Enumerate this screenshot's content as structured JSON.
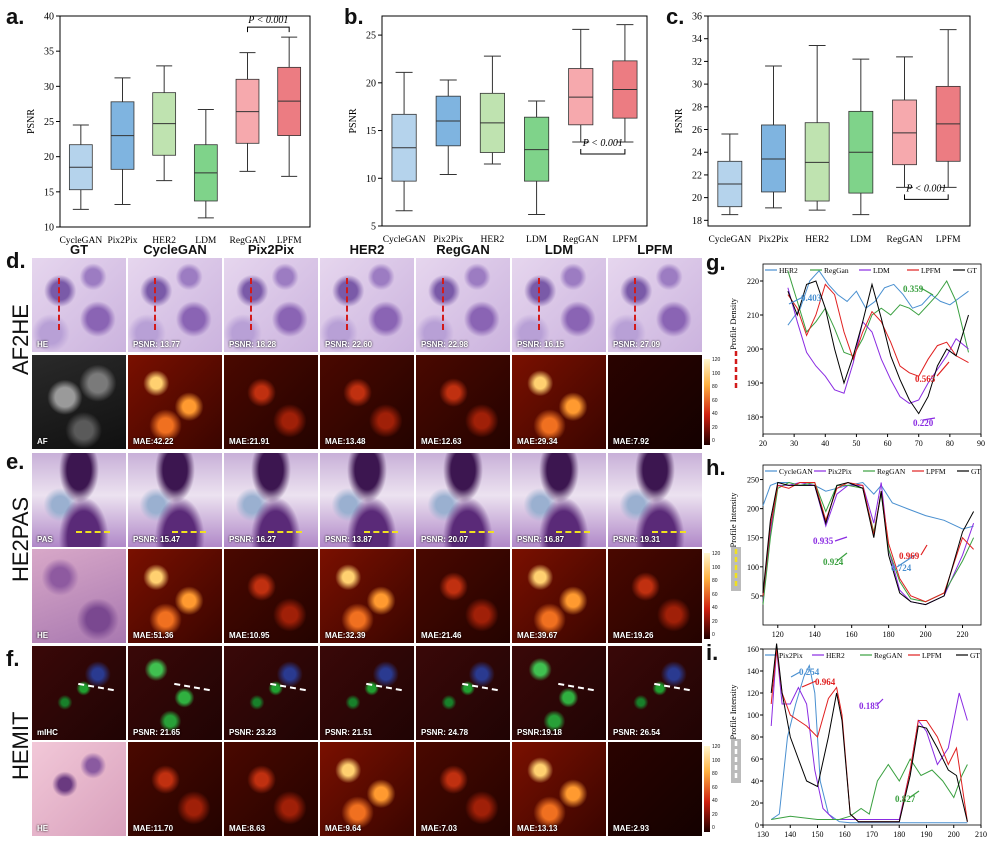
{
  "panel_letters": {
    "a": "a.",
    "b": "b.",
    "c": "c.",
    "d": "d.",
    "e": "e.",
    "f": "f.",
    "g": "g.",
    "h": "h.",
    "i": "i."
  },
  "columns": [
    "GT",
    "CycleGAN",
    "Pix2Pix",
    "HER2",
    "RegGAN",
    "LDM",
    "LPFM"
  ],
  "row_labels": {
    "d": "AF2HE",
    "e": "HE2PAS",
    "f": "HEMIT"
  },
  "rows": {
    "d_top": {
      "gt_label": "HE",
      "labels": [
        "PSNR: 13.77",
        "PSNR: 18.28",
        "PSNR: 22.60",
        "PSNR: 22.98",
        "PSNR: 16.15",
        "PSNR: 27.09"
      ]
    },
    "d_bot": {
      "gt_label": "AF",
      "labels": [
        "MAE:42.22",
        "MAE:21.91",
        "MAE:13.48",
        "MAE:12.63",
        "MAE:29.34",
        "MAE:7.92"
      ]
    },
    "e_top": {
      "gt_label": "PAS",
      "labels": [
        "PSNR: 15.47",
        "PSNR: 16.27",
        "PSNR: 13.87",
        "PSNR: 20.07",
        "PSNR: 16.87",
        "PSNR: 19.31"
      ]
    },
    "e_bot": {
      "gt_label": "HE",
      "labels": [
        "MAE:51.36",
        "MAE:10.95",
        "MAE:32.39",
        "MAE:21.46",
        "MAE:39.67",
        "MAE:19.26"
      ]
    },
    "f_top": {
      "gt_label": "mIHC",
      "labels": [
        "PSNR: 21.65",
        "PSNR: 23.23",
        "PSNR: 21.51",
        "PSNR: 24.78",
        "PSNR:19.18",
        "PSNR: 26.54"
      ]
    },
    "f_bot": {
      "gt_label": "HE",
      "labels": [
        "MAE:11.70",
        "MAE:8.63",
        "MAE:9.64",
        "MAE:7.03",
        "MAE:13.13",
        "MAE:2.93"
      ]
    }
  },
  "colorbar_ticks": [
    "120",
    "100",
    "80",
    "60",
    "40",
    "20",
    "0"
  ],
  "chart_data": [
    {
      "type": "box",
      "id": "a",
      "ylabel": "PSNR",
      "ylim": [
        10,
        40
      ],
      "yticks": [
        10,
        15,
        20,
        25,
        30,
        35,
        40
      ],
      "categories": [
        "CycleGAN",
        "Pix2Pix",
        "HER2",
        "LDM",
        "RegGAN",
        "LPFM"
      ],
      "colors": [
        "#b5d3ec",
        "#7fb4e0",
        "#bfe3b0",
        "#7fd38a",
        "#f6a9ad",
        "#ec7c82"
      ],
      "boxes": [
        {
          "min": 12.5,
          "q1": 15.3,
          "median": 18.5,
          "q3": 21.7,
          "max": 24.5
        },
        {
          "min": 13.2,
          "q1": 18.2,
          "median": 23.0,
          "q3": 27.8,
          "max": 31.2
        },
        {
          "min": 16.6,
          "q1": 20.2,
          "median": 24.7,
          "q3": 29.1,
          "max": 32.9
        },
        {
          "min": 11.3,
          "q1": 13.7,
          "median": 17.7,
          "q3": 21.7,
          "max": 26.7
        },
        {
          "min": 17.9,
          "q1": 21.9,
          "median": 26.4,
          "q3": 31.0,
          "max": 34.8
        },
        {
          "min": 17.2,
          "q1": 23.0,
          "median": 27.9,
          "q3": 32.7,
          "max": 37.0
        }
      ],
      "annotation": "P < 0.001",
      "bracket": [
        4,
        5
      ]
    },
    {
      "type": "box",
      "id": "b",
      "ylabel": "PSNR",
      "ylim": [
        5,
        27
      ],
      "yticks": [
        5,
        10,
        15,
        20,
        25
      ],
      "categories": [
        "CycleGAN",
        "Pix2Pix",
        "HER2",
        "LDM",
        "RegGAN",
        "LPFM"
      ],
      "colors": [
        "#b5d3ec",
        "#7fb4e0",
        "#bfe3b0",
        "#7fd38a",
        "#f6a9ad",
        "#ec7c82"
      ],
      "boxes": [
        {
          "min": 6.6,
          "q1": 9.7,
          "median": 13.2,
          "q3": 16.7,
          "max": 21.1
        },
        {
          "min": 10.4,
          "q1": 13.4,
          "median": 16.0,
          "q3": 18.6,
          "max": 20.3
        },
        {
          "min": 11.5,
          "q1": 12.7,
          "median": 15.8,
          "q3": 18.9,
          "max": 22.8
        },
        {
          "min": 6.2,
          "q1": 9.7,
          "median": 13.0,
          "q3": 16.4,
          "max": 18.1
        },
        {
          "min": 13.8,
          "q1": 15.6,
          "median": 18.5,
          "q3": 21.5,
          "max": 25.6
        },
        {
          "min": 13.8,
          "q1": 16.3,
          "median": 19.3,
          "q3": 22.3,
          "max": 26.1
        }
      ],
      "annotation": "P < 0.001",
      "bracket": [
        4,
        5
      ]
    },
    {
      "type": "box",
      "id": "c",
      "ylabel": "PSNR",
      "ylim": [
        17.5,
        36
      ],
      "yticks": [
        18,
        20,
        22,
        24,
        26,
        28,
        30,
        32,
        34,
        36
      ],
      "categories": [
        "CycleGAN",
        "Pix2Pix",
        "HER2",
        "LDM",
        "RegGAN",
        "LPFM"
      ],
      "colors": [
        "#b5d3ec",
        "#7fb4e0",
        "#bfe3b0",
        "#7fd38a",
        "#f6a9ad",
        "#ec7c82"
      ],
      "boxes": [
        {
          "min": 18.5,
          "q1": 19.2,
          "median": 21.2,
          "q3": 23.2,
          "max": 25.6
        },
        {
          "min": 19.1,
          "q1": 20.5,
          "median": 23.4,
          "q3": 26.4,
          "max": 31.6
        },
        {
          "min": 18.9,
          "q1": 19.7,
          "median": 23.1,
          "q3": 26.6,
          "max": 33.4
        },
        {
          "min": 18.5,
          "q1": 20.4,
          "median": 24.0,
          "q3": 27.6,
          "max": 32.2
        },
        {
          "min": 20.9,
          "q1": 22.9,
          "median": 25.7,
          "q3": 28.6,
          "max": 32.4
        },
        {
          "min": 20.9,
          "q1": 23.2,
          "median": 26.5,
          "q3": 29.8,
          "max": 34.8
        }
      ],
      "annotation": "P < 0.001",
      "bracket": [
        4,
        5
      ]
    },
    {
      "type": "line",
      "id": "g",
      "ylabel": "Profile Density",
      "xlim": [
        20,
        90
      ],
      "ylim": [
        175,
        225
      ],
      "xticks": [
        20,
        30,
        40,
        50,
        60,
        70,
        80,
        90
      ],
      "yticks": [
        180,
        190,
        200,
        210,
        220
      ],
      "series": [
        {
          "name": "HER2",
          "color": "#4a90d0",
          "x": [
            28,
            32,
            35,
            38,
            41,
            44,
            47,
            50,
            53,
            56,
            59,
            62,
            65,
            68,
            71,
            74,
            77,
            80,
            83,
            86
          ],
          "y": [
            207,
            212,
            220,
            223,
            219,
            216,
            214,
            217,
            212,
            214,
            218,
            219,
            216,
            212,
            213,
            216,
            214,
            213,
            215,
            217
          ]
        },
        {
          "name": "RegGan",
          "color": "#3aa040",
          "x": [
            28,
            31,
            34,
            37,
            40,
            43,
            46,
            49,
            52,
            55,
            58,
            61,
            64,
            67,
            70,
            73,
            76,
            79,
            82,
            86
          ],
          "y": [
            223,
            214,
            205,
            208,
            212,
            206,
            199,
            198,
            203,
            210,
            212,
            210,
            213,
            212,
            210,
            213,
            216,
            220,
            214,
            199
          ]
        },
        {
          "name": "LDM",
          "color": "#8a2be2",
          "x": [
            28,
            31,
            34,
            37,
            40,
            43,
            46,
            49,
            52,
            55,
            58,
            61,
            64,
            67,
            70,
            73,
            76,
            79,
            82,
            86
          ],
          "y": [
            218,
            208,
            199,
            195,
            192,
            188,
            187,
            196,
            208,
            205,
            197,
            191,
            186,
            184,
            185,
            190,
            194,
            198,
            203,
            200
          ]
        },
        {
          "name": "LPFM",
          "color": "#e02020",
          "x": [
            28,
            31,
            34,
            37,
            40,
            43,
            46,
            49,
            52,
            55,
            58,
            61,
            64,
            67,
            70,
            73,
            76,
            79,
            82,
            86
          ],
          "y": [
            216,
            212,
            204,
            210,
            219,
            216,
            205,
            197,
            205,
            211,
            208,
            202,
            195,
            193,
            192,
            197,
            201,
            202,
            198,
            196
          ]
        },
        {
          "name": "GT",
          "color": "#000000",
          "x": [
            28,
            31,
            34,
            37,
            40,
            43,
            46,
            49,
            52,
            55,
            58,
            61,
            64,
            67,
            70,
            73,
            76,
            79,
            82,
            86
          ],
          "y": [
            217,
            210,
            219,
            220,
            212,
            200,
            190,
            198,
            208,
            219,
            209,
            198,
            191,
            185,
            181,
            186,
            195,
            200,
            198,
            210
          ]
        }
      ],
      "annotations": [
        {
          "text": "0.403",
          "color": "#4a90d0"
        },
        {
          "text": "0.359",
          "color": "#3aa040"
        },
        {
          "text": "0.565",
          "color": "#e02020"
        },
        {
          "text": "0.220",
          "color": "#8a2be2"
        }
      ]
    },
    {
      "type": "line",
      "id": "h",
      "ylabel": "Profile Intensity",
      "xlim": [
        112,
        230
      ],
      "ylim": [
        0,
        275
      ],
      "xticks": [
        120,
        140,
        160,
        180,
        200,
        220
      ],
      "yticks": [
        50,
        100,
        150,
        200,
        250
      ],
      "series": [
        {
          "name": "CycleGAN",
          "color": "#4a90d0",
          "x": [
            112,
            116,
            120,
            126,
            132,
            140,
            146,
            152,
            158,
            166,
            172,
            176,
            182,
            190,
            200,
            210,
            220,
            226
          ],
          "y": [
            205,
            240,
            245,
            245,
            240,
            240,
            230,
            235,
            240,
            245,
            225,
            240,
            210,
            200,
            188,
            180,
            165,
            170
          ]
        },
        {
          "name": "Pix2Pix",
          "color": "#8a2be2",
          "x": [
            112,
            116,
            120,
            126,
            132,
            140,
            146,
            152,
            158,
            166,
            172,
            176,
            180,
            186,
            192,
            200,
            210,
            220,
            226
          ],
          "y": [
            40,
            160,
            240,
            240,
            245,
            240,
            170,
            225,
            240,
            240,
            175,
            245,
            130,
            60,
            40,
            35,
            50,
            120,
            175
          ]
        },
        {
          "name": "RegGAN",
          "color": "#3aa040",
          "x": [
            112,
            116,
            120,
            126,
            132,
            140,
            146,
            152,
            158,
            166,
            172,
            176,
            180,
            186,
            192,
            200,
            210,
            220,
            226
          ],
          "y": [
            35,
            150,
            235,
            245,
            240,
            245,
            195,
            240,
            240,
            235,
            160,
            225,
            130,
            75,
            45,
            40,
            55,
            110,
            150
          ]
        },
        {
          "name": "LPFM",
          "color": "#e02020",
          "x": [
            112,
            116,
            120,
            126,
            132,
            140,
            146,
            152,
            158,
            166,
            172,
            176,
            180,
            186,
            192,
            200,
            210,
            220,
            226
          ],
          "y": [
            50,
            170,
            240,
            235,
            245,
            245,
            180,
            235,
            245,
            240,
            155,
            230,
            140,
            80,
            50,
            40,
            55,
            150,
            130
          ]
        },
        {
          "name": "GT",
          "color": "#000000",
          "x": [
            112,
            116,
            120,
            126,
            132,
            140,
            146,
            152,
            158,
            166,
            172,
            176,
            180,
            186,
            192,
            200,
            210,
            220,
            226
          ],
          "y": [
            55,
            180,
            245,
            240,
            240,
            240,
            175,
            240,
            245,
            235,
            150,
            230,
            120,
            55,
            40,
            35,
            50,
            160,
            195
          ]
        }
      ],
      "annotations": [
        {
          "text": "0.724",
          "color": "#4a90d0"
        },
        {
          "text": "0.935",
          "color": "#8a2be2"
        },
        {
          "text": "0.924",
          "color": "#3aa040"
        },
        {
          "text": "0.969",
          "color": "#e02020"
        }
      ]
    },
    {
      "type": "line",
      "id": "i",
      "ylabel": "Profile Intensity",
      "xlim": [
        130,
        210
      ],
      "ylim": [
        0,
        160
      ],
      "xticks": [
        130,
        140,
        150,
        160,
        170,
        180,
        190,
        200,
        210
      ],
      "yticks": [
        0,
        20,
        40,
        60,
        80,
        100,
        120,
        140,
        160
      ],
      "series": [
        {
          "name": "Pix2Pix",
          "color": "#4a90d0",
          "x": [
            133,
            136,
            139,
            142,
            145,
            147,
            149,
            151,
            154,
            158,
            162,
            170,
            180,
            190,
            200,
            205
          ],
          "y": [
            5,
            10,
            80,
            110,
            135,
            145,
            120,
            40,
            10,
            3,
            2,
            2,
            2,
            2,
            2,
            2
          ]
        },
        {
          "name": "HER2",
          "color": "#8a2be2",
          "x": [
            133,
            135,
            137,
            140,
            143,
            146,
            149,
            152,
            156,
            160,
            165,
            170,
            175,
            180,
            184,
            187,
            190,
            194,
            198,
            202,
            205
          ],
          "y": [
            90,
            160,
            110,
            110,
            125,
            110,
            50,
            15,
            5,
            5,
            5,
            5,
            5,
            5,
            50,
            95,
            85,
            55,
            70,
            120,
            95
          ]
        },
        {
          "name": "RegGAN",
          "color": "#3aa040",
          "x": [
            133,
            140,
            150,
            158,
            162,
            166,
            169,
            172,
            176,
            180,
            184,
            188,
            192,
            196,
            200,
            203,
            205
          ],
          "y": [
            5,
            8,
            5,
            5,
            8,
            15,
            10,
            40,
            55,
            40,
            60,
            45,
            50,
            40,
            25,
            45,
            55
          ]
        },
        {
          "name": "LPFM",
          "color": "#e02020",
          "x": [
            133,
            135,
            137,
            140,
            143,
            146,
            150,
            154,
            157,
            159,
            162,
            165,
            180,
            184,
            187,
            190,
            194,
            198,
            201,
            205
          ],
          "y": [
            110,
            160,
            120,
            100,
            95,
            90,
            80,
            115,
            125,
            100,
            10,
            3,
            3,
            50,
            95,
            95,
            80,
            55,
            70,
            3
          ]
        },
        {
          "name": "GT",
          "color": "#000000",
          "x": [
            133,
            135,
            137,
            140,
            143,
            146,
            150,
            154,
            157,
            159,
            162,
            165,
            180,
            184,
            187,
            190,
            194,
            198,
            201,
            205
          ],
          "y": [
            120,
            165,
            120,
            80,
            60,
            40,
            35,
            80,
            120,
            95,
            10,
            3,
            3,
            45,
            90,
            88,
            70,
            50,
            45,
            3
          ]
        }
      ],
      "annotations": [
        {
          "text": "0.254",
          "color": "#4a90d0"
        },
        {
          "text": "0.964",
          "color": "#e02020"
        },
        {
          "text": "0.185",
          "color": "#8a2be2"
        },
        {
          "text": "0.827",
          "color": "#3aa040"
        }
      ]
    }
  ]
}
